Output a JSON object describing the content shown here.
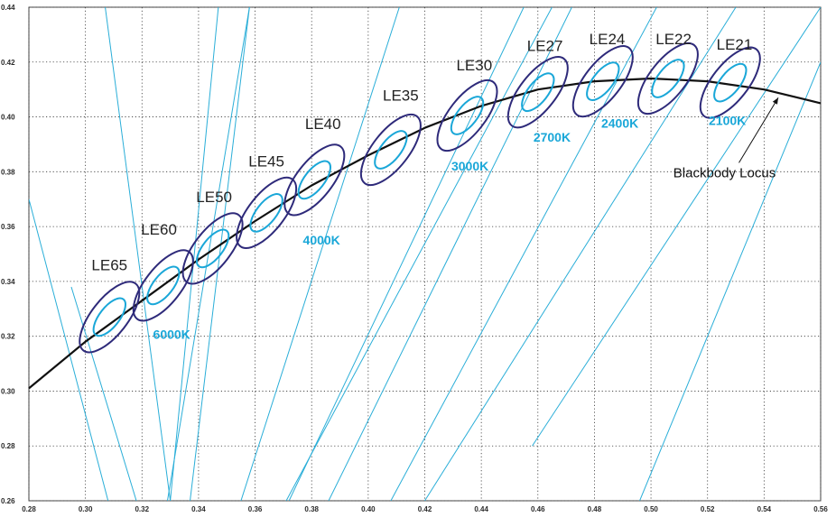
{
  "chart_data": {
    "type": "scatter",
    "title": "",
    "xlabel": "",
    "ylabel": "",
    "xlim": [
      0.28,
      0.56
    ],
    "ylim": [
      0.26,
      0.44
    ],
    "x_ticks": [
      "0.28",
      "0.30",
      "0.32",
      "0.34",
      "0.36",
      "0.38",
      "0.40",
      "0.42",
      "0.44",
      "0.46",
      "0.48",
      "0.50",
      "0.52",
      "0.54",
      "0.56"
    ],
    "y_ticks": [
      "0.26",
      "0.28",
      "0.30",
      "0.32",
      "0.34",
      "0.36",
      "0.38",
      "0.40",
      "0.42",
      "0.44"
    ],
    "grid": true,
    "colors": {
      "outer_ellipse": "#2e2a7a",
      "inner_ellipse": "#1aa7d8",
      "iso_lines": "#2aaed8",
      "cct_labels": "#1aa7d8",
      "locus": "#111111",
      "grid": "#333333"
    },
    "blackbody_locus": {
      "label": "Blackbody Locus",
      "x": [
        0.28,
        0.3,
        0.32,
        0.34,
        0.36,
        0.38,
        0.4,
        0.42,
        0.44,
        0.46,
        0.48,
        0.5,
        0.52,
        0.54,
        0.56
      ],
      "y": [
        0.301,
        0.318,
        0.333,
        0.348,
        0.362,
        0.375,
        0.386,
        0.396,
        0.404,
        0.41,
        0.413,
        0.414,
        0.413,
        0.41,
        0.405
      ]
    },
    "ellipses": [
      {
        "label": "LE65",
        "x": 0.3085,
        "y": 0.327,
        "label_x": 0.3085,
        "label_y": 0.344
      },
      {
        "label": "LE60",
        "x": 0.3275,
        "y": 0.3385,
        "label_x": 0.326,
        "label_y": 0.357
      },
      {
        "label": "LE50",
        "x": 0.345,
        "y": 0.352,
        "label_x": 0.3455,
        "label_y": 0.369
      },
      {
        "label": "LE45",
        "x": 0.364,
        "y": 0.365,
        "label_x": 0.364,
        "label_y": 0.382
      },
      {
        "label": "LE40",
        "x": 0.381,
        "y": 0.377,
        "label_x": 0.384,
        "label_y": 0.3955
      },
      {
        "label": "LE35",
        "x": 0.408,
        "y": 0.388,
        "label_x": 0.4115,
        "label_y": 0.406
      },
      {
        "label": "LE30",
        "x": 0.435,
        "y": 0.4005,
        "label_x": 0.4375,
        "label_y": 0.417
      },
      {
        "label": "LE27",
        "x": 0.46,
        "y": 0.409,
        "label_x": 0.4625,
        "label_y": 0.424
      },
      {
        "label": "LE24",
        "x": 0.483,
        "y": 0.413,
        "label_x": 0.4845,
        "label_y": 0.4265
      },
      {
        "label": "LE22",
        "x": 0.506,
        "y": 0.414,
        "label_x": 0.508,
        "label_y": 0.4265
      },
      {
        "label": "LE21",
        "x": 0.528,
        "y": 0.4125,
        "label_x": 0.5295,
        "label_y": 0.4245
      }
    ],
    "iso_cct": [
      {
        "label": "6000K",
        "x1": 0.295,
        "y1": 0.338,
        "x2": 0.318,
        "y2": 0.26,
        "label_x": 0.3305,
        "label_y": 0.319
      },
      {
        "label": "4000K",
        "x1": 0.329,
        "y1": 0.26,
        "x2": 0.358,
        "y2": 0.44,
        "label_x": 0.3835,
        "label_y": 0.3535
      },
      {
        "label": "3000K",
        "x1": 0.371,
        "y1": 0.26,
        "x2": 0.465,
        "y2": 0.44,
        "label_x": 0.436,
        "label_y": 0.3805
      },
      {
        "label": "2700K",
        "x1": 0.408,
        "y1": 0.26,
        "x2": 0.502,
        "y2": 0.44,
        "label_x": 0.465,
        "label_y": 0.391
      },
      {
        "label": "2400K",
        "x1": 0.458,
        "y1": 0.28,
        "x2": 0.56,
        "y2": 0.44,
        "label_x": 0.489,
        "label_y": 0.396
      },
      {
        "label": "2100K",
        "x1": 0.496,
        "y1": 0.26,
        "x2": 0.56,
        "y2": 0.42,
        "label_x": 0.527,
        "label_y": 0.397
      }
    ],
    "extra_lines": [
      {
        "x1": 0.28,
        "y1": 0.37,
        "x2": 0.308,
        "y2": 0.26
      },
      {
        "x1": 0.307,
        "y1": 0.44,
        "x2": 0.33,
        "y2": 0.26
      },
      {
        "x1": 0.33,
        "y1": 0.26,
        "x2": 0.347,
        "y2": 0.44
      },
      {
        "x1": 0.337,
        "y1": 0.26,
        "x2": 0.358,
        "y2": 0.44
      },
      {
        "x1": 0.355,
        "y1": 0.26,
        "x2": 0.411,
        "y2": 0.44
      },
      {
        "x1": 0.372,
        "y1": 0.26,
        "x2": 0.455,
        "y2": 0.44
      },
      {
        "x1": 0.386,
        "y1": 0.26,
        "x2": 0.472,
        "y2": 0.44
      },
      {
        "x1": 0.42,
        "y1": 0.26,
        "x2": 0.53,
        "y2": 0.44
      }
    ],
    "annotation": {
      "text": "Blackbody Locus",
      "text_x": 0.526,
      "text_y": 0.378,
      "arrow_to_x": 0.545,
      "arrow_to_y": 0.407
    }
  }
}
